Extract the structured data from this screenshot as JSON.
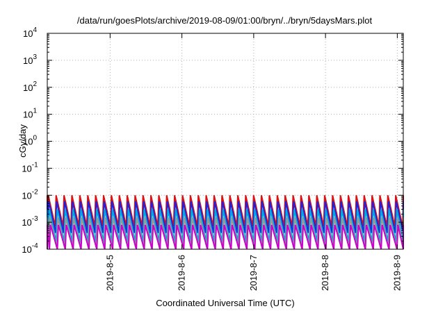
{
  "chart_data": {
    "type": "line",
    "title": "/data/run/goesPlots/archive/2019-08-09/01:00/bryn/../bryn/5daysMars.plot",
    "xlabel": "Coordinated Universal Time (UTC)",
    "ylabel": "cGy/day",
    "yscale": "log",
    "ylim": [
      0.0001,
      10000
    ],
    "xlim": [
      "2019-08-04T03:00",
      "2019-08-09T02:00"
    ],
    "x_tick_labels": [
      "2019-8-5",
      "2019-8-6",
      "2019-8-7",
      "2019-8-8",
      "2019-8-9"
    ],
    "y_tick_labels": [
      {
        "base": "10",
        "exp": "-4"
      },
      {
        "base": "10",
        "exp": "-3"
      },
      {
        "base": "10",
        "exp": "-2"
      },
      {
        "base": "10",
        "exp": "-1"
      },
      {
        "base": "10",
        "exp": "0"
      },
      {
        "base": "10",
        "exp": "1"
      },
      {
        "base": "10",
        "exp": "2"
      },
      {
        "base": "10",
        "exp": "3"
      },
      {
        "base": "10",
        "exp": "4"
      }
    ],
    "grid": true,
    "pattern": {
      "description": "sawtooth series, each cycle rising sharply then decaying",
      "cycle_days": 0.11
    },
    "series": [
      {
        "color": "#dd1111",
        "peak": 0.01,
        "trough": 0.0007
      },
      {
        "color": "#2222dd",
        "peak": 0.006,
        "trough": 0.0004
      },
      {
        "color": "#00aadd",
        "peak": 0.003,
        "trough": 0.00018
      },
      {
        "color": "#999999",
        "peak": 0.0015,
        "trough": 0.00011
      },
      {
        "color": "#cc00cc",
        "peak": 0.0008,
        "trough": 5e-05
      }
    ]
  }
}
